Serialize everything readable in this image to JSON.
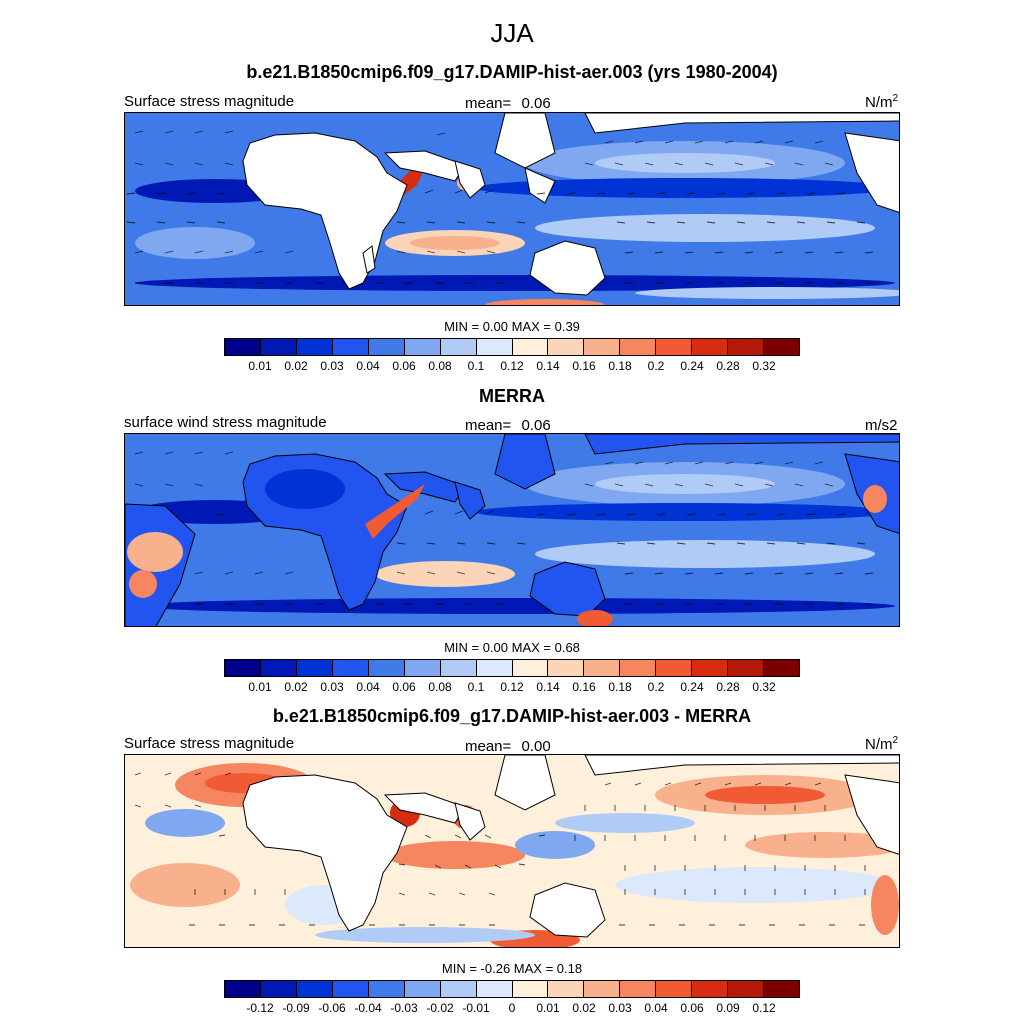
{
  "figure": {
    "title": "JJA"
  },
  "panels": [
    {
      "title": "b.e21.B1850cmip6.f09_g17.DAMIP-hist-aer.003 (yrs 1980-2004)",
      "left_label": "Surface stress magnitude",
      "mean_label": "mean=",
      "mean_value": "0.06",
      "units_base": "N/m",
      "units_sup": "2",
      "minmax": "MIN =   0.00 MAX =   0.39",
      "kind": "sequential"
    },
    {
      "title": "MERRA",
      "left_label": "surface wind stress magnitude",
      "mean_label": "mean=",
      "mean_value": "0.06",
      "units_base": "m/s2",
      "units_sup": "",
      "minmax": "MIN =   0.00 MAX =   0.68",
      "kind": "sequential"
    },
    {
      "title": "b.e21.B1850cmip6.f09_g17.DAMIP-hist-aer.003 - MERRA",
      "left_label": "Surface stress magnitude",
      "mean_label": "mean=",
      "mean_value": "0.00",
      "units_base": "N/m",
      "units_sup": "2",
      "minmax": "MIN =  -0.26 MAX =   0.18",
      "kind": "diverging"
    }
  ],
  "colorbars": [
    {
      "colors": [
        "#00008c",
        "#0019b4",
        "#0033d6",
        "#2255f0",
        "#3f7ae8",
        "#7fa8f0",
        "#b0ccf6",
        "#dce9fc",
        "#fff0dc",
        "#fcd4b8",
        "#f9b08c",
        "#f58660",
        "#f05a34",
        "#d82c10",
        "#b41808",
        "#7d0000"
      ],
      "ticks": [
        "0.01",
        "0.02",
        "0.03",
        "0.04",
        "0.06",
        "0.08",
        "0.1",
        "0.12",
        "0.14",
        "0.16",
        "0.18",
        "0.2",
        "0.24",
        "0.28",
        "0.32"
      ]
    },
    {
      "colors": [
        "#00008c",
        "#0019b4",
        "#0033d6",
        "#2255f0",
        "#3f7ae8",
        "#7fa8f0",
        "#b0ccf6",
        "#dce9fc",
        "#fff0dc",
        "#fcd4b8",
        "#f9b08c",
        "#f58660",
        "#f05a34",
        "#d82c10",
        "#b41808",
        "#7d0000"
      ],
      "ticks": [
        "0.01",
        "0.02",
        "0.03",
        "0.04",
        "0.06",
        "0.08",
        "0.1",
        "0.12",
        "0.14",
        "0.16",
        "0.18",
        "0.2",
        "0.24",
        "0.28",
        "0.32"
      ]
    },
    {
      "colors": [
        "#00008c",
        "#0019b4",
        "#0033d6",
        "#2255f0",
        "#3f7ae8",
        "#7fa8f0",
        "#b0ccf6",
        "#dce9fc",
        "#fff0dc",
        "#fcd4b8",
        "#f9b08c",
        "#f58660",
        "#f05a34",
        "#d82c10",
        "#b41808",
        "#7d0000"
      ],
      "ticks": [
        "-0.12",
        "-0.09",
        "-0.06",
        "-0.04",
        "-0.03",
        "-0.02",
        "-0.01",
        "0",
        "0.01",
        "0.02",
        "0.03",
        "0.04",
        "0.06",
        "0.09",
        "0.12"
      ]
    }
  ]
}
